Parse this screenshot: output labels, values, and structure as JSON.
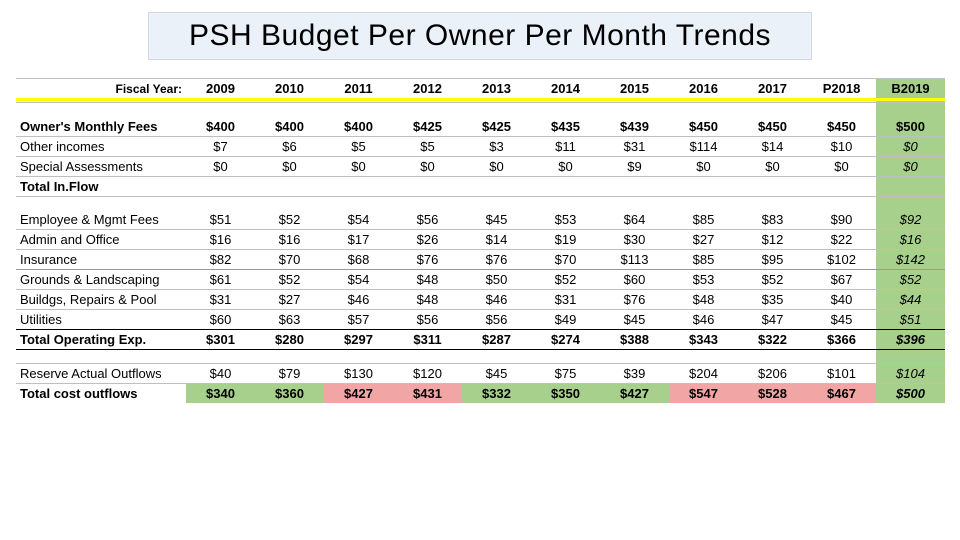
{
  "title": "PSH Budget Per Owner Per Month Trends",
  "header_label": "Fiscal Year:",
  "years": [
    "2009",
    "2010",
    "2011",
    "2012",
    "2013",
    "2014",
    "2015",
    "2016",
    "2017",
    "P2018",
    "B2019"
  ],
  "rows": [
    {
      "label": "Owner's Monthly Fees",
      "bold": true,
      "vals": [
        "$400",
        "$400",
        "$400",
        "$425",
        "$425",
        "$435",
        "$439",
        "$450",
        "$450",
        "$450",
        "$500"
      ]
    },
    {
      "label": "Other incomes",
      "bold": false,
      "vals": [
        "$7",
        "$6",
        "$5",
        "$5",
        "$3",
        "$11",
        "$31",
        "$114",
        "$14",
        "$10",
        "$0"
      ],
      "b2019_italic": true
    },
    {
      "label": "Special Assessments",
      "bold": false,
      "vals": [
        "$0",
        "$0",
        "$0",
        "$0",
        "$0",
        "$0",
        "$9",
        "$0",
        "$0",
        "$0",
        "$0"
      ],
      "b2019_italic": true
    },
    {
      "label": "Total In.Flow",
      "bold": true,
      "vals": [
        "",
        "",
        "",
        "",
        "",
        "",
        "",
        "",
        "",
        "",
        ""
      ]
    }
  ],
  "rows2": [
    {
      "label": "Employee & Mgmt Fees",
      "vals": [
        "$51",
        "$52",
        "$54",
        "$56",
        "$45",
        "$53",
        "$64",
        "$85",
        "$83",
        "$90",
        "$92"
      ],
      "b2019_italic": true
    },
    {
      "label": "Admin and Office",
      "vals": [
        "$16",
        "$16",
        "$17",
        "$26",
        "$14",
        "$19",
        "$30",
        "$27",
        "$12",
        "$22",
        "$16"
      ],
      "b2019_italic": true
    },
    {
      "label": "Insurance",
      "vals": [
        "$82",
        "$70",
        "$68",
        "$76",
        "$76",
        "$70",
        "$113",
        "$85",
        "$95",
        "$102",
        "$142"
      ],
      "b2019_italic": true
    }
  ],
  "rows3": [
    {
      "label": "Grounds & Landscaping",
      "vals": [
        "$61",
        "$52",
        "$54",
        "$48",
        "$50",
        "$52",
        "$60",
        "$53",
        "$52",
        "$67",
        "$52"
      ],
      "b2019_italic": true
    },
    {
      "label": "Buildgs, Repairs & Pool",
      "vals": [
        "$31",
        "$27",
        "$46",
        "$48",
        "$46",
        "$31",
        "$76",
        "$48",
        "$35",
        "$40",
        "$44"
      ],
      "b2019_italic": true
    },
    {
      "label": "Utilities",
      "vals": [
        "$60",
        "$63",
        "$57",
        "$56",
        "$56",
        "$49",
        "$45",
        "$46",
        "$47",
        "$45",
        "$51"
      ],
      "b2019_italic": true
    }
  ],
  "total_op": {
    "label": "Total Operating Exp.",
    "vals": [
      "$301",
      "$280",
      "$297",
      "$311",
      "$287",
      "$274",
      "$388",
      "$343",
      "$322",
      "$366",
      "$396"
    ],
    "b2019_italic": true
  },
  "reserve": {
    "label": "Reserve Actual Outflows",
    "vals": [
      "$40",
      "$79",
      "$130",
      "$120",
      "$45",
      "$75",
      "$39",
      "$204",
      "$206",
      "$101",
      "$104"
    ],
    "b2019_italic": true
  },
  "total_cost": {
    "label": "Total cost outflows",
    "cells": [
      {
        "v": "$340",
        "hl": "green"
      },
      {
        "v": "$360",
        "hl": "green"
      },
      {
        "v": "$427",
        "hl": "red"
      },
      {
        "v": "$431",
        "hl": "red"
      },
      {
        "v": "$332",
        "hl": "green"
      },
      {
        "v": "$350",
        "hl": "green"
      },
      {
        "v": "$427",
        "hl": "green"
      },
      {
        "v": "$547",
        "hl": "red"
      },
      {
        "v": "$528",
        "hl": "red"
      },
      {
        "v": "$467",
        "hl": "red"
      },
      {
        "v": "$500",
        "hl": "b2019",
        "italic": true
      }
    ]
  },
  "colors": {
    "title_bg": "#eaf1f8",
    "b2019_col": "#a8d08d",
    "hl_green": "#a8d08d",
    "hl_red": "#f2a5a5",
    "yellow": "#ffff00"
  }
}
